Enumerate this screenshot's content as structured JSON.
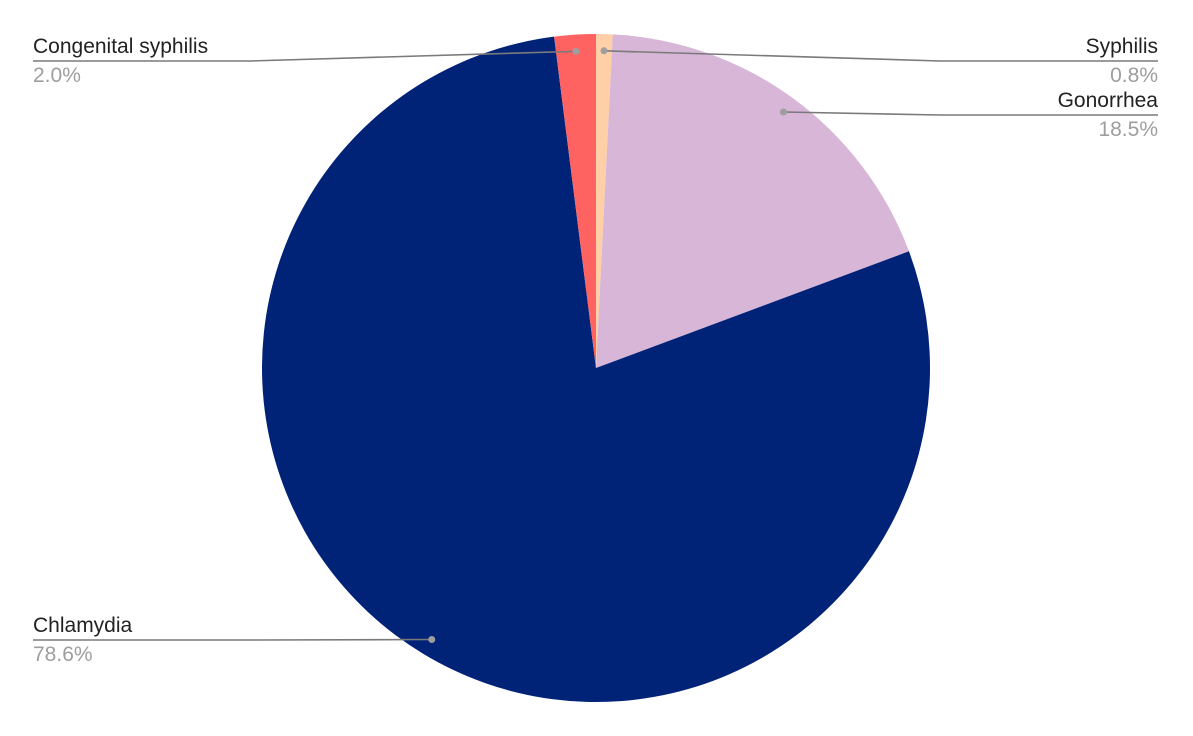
{
  "chart_data": {
    "type": "pie",
    "title": "",
    "slices": [
      {
        "label": "Syphilis",
        "value": 0.8,
        "display": "0.8%",
        "color": "#ffcfa8"
      },
      {
        "label": "Gonorrhea",
        "value": 18.5,
        "display": "18.5%",
        "color": "#d8b6d8"
      },
      {
        "label": "Chlamydia",
        "value": 78.6,
        "display": "78.6%",
        "color": "#002277"
      },
      {
        "label": "Congenital syphilis",
        "value": 2.0,
        "display": "2.0%",
        "color": "#ff6361"
      }
    ],
    "start_angle": "12 o'clock",
    "direction": "clockwise",
    "legend": "none",
    "data_labels": "outside with leader lines"
  }
}
